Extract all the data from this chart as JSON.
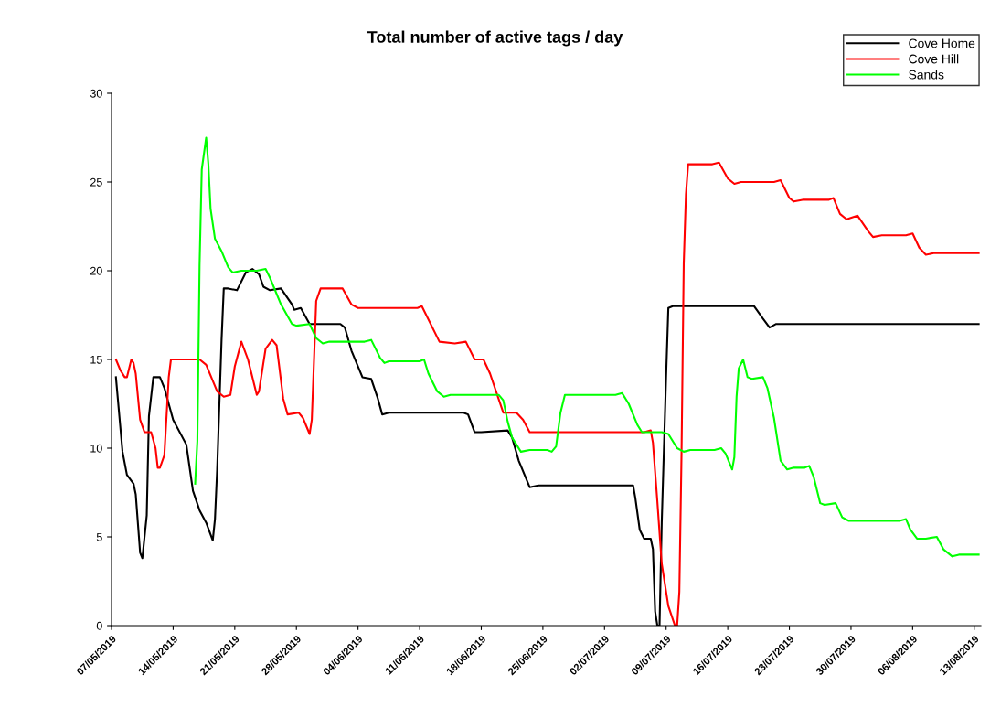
{
  "chart_data": {
    "type": "line",
    "title": "Total number of active tags / day",
    "ylim": [
      0,
      30
    ],
    "yticks": [
      0,
      5,
      10,
      15,
      20,
      25,
      30
    ],
    "xlim": [
      "2019-05-07",
      "2019-08-13T18:00"
    ],
    "xticks": [
      {
        "value": "2019-05-07",
        "label": "07/05/2019"
      },
      {
        "value": "2019-05-14",
        "label": "14/05/2019"
      },
      {
        "value": "2019-05-21",
        "label": "21/05/2019"
      },
      {
        "value": "2019-05-28",
        "label": "28/05/2019"
      },
      {
        "value": "2019-06-04",
        "label": "04/06/2019"
      },
      {
        "value": "2019-06-11",
        "label": "11/06/2019"
      },
      {
        "value": "2019-06-18",
        "label": "18/06/2019"
      },
      {
        "value": "2019-06-25",
        "label": "25/06/2019"
      },
      {
        "value": "2019-07-02",
        "label": "02/07/2019"
      },
      {
        "value": "2019-07-09",
        "label": "09/07/2019"
      },
      {
        "value": "2019-07-16",
        "label": "16/07/2019"
      },
      {
        "value": "2019-07-23",
        "label": "23/07/2019"
      },
      {
        "value": "2019-07-30",
        "label": "30/07/2019"
      },
      {
        "value": "2019-08-06",
        "label": "06/08/2019"
      },
      {
        "value": "2019-08-13",
        "label": "13/08/2019"
      }
    ],
    "grid": false,
    "legend": "top right",
    "marker": "none",
    "line_style": "solid",
    "series": [
      {
        "name": "Cove Home",
        "color": "#000000",
        "x": [
          "2019-05-07T12:00",
          "2019-05-07T18:00",
          "2019-05-08T06:00",
          "2019-05-08T18:00",
          "2019-05-09T12:00",
          "2019-05-09T18:00",
          "2019-05-10T06:00",
          "2019-05-10T12:00",
          "2019-05-11",
          "2019-05-11T06:00",
          "2019-05-11T18:00",
          "2019-05-12T12:00",
          "2019-05-13",
          "2019-05-14",
          "2019-05-15T12:00",
          "2019-05-16T06:00",
          "2019-05-17",
          "2019-05-17T18:00",
          "2019-05-18T12:00",
          "2019-05-18T18:00",
          "2019-05-19",
          "2019-05-19T12:00",
          "2019-05-19T18:00",
          "2019-05-20T06:00",
          "2019-05-21T06:00",
          "2019-05-22T06:00",
          "2019-05-23",
          "2019-05-23T18:00",
          "2019-05-24T06:00",
          "2019-05-25",
          "2019-05-26T06:00",
          "2019-05-27T12:00",
          "2019-05-27T18:00",
          "2019-05-28T12:00",
          "2019-05-29T12:00",
          "2019-06-02",
          "2019-06-02T12:00",
          "2019-06-03T06:00",
          "2019-06-04T12:00",
          "2019-06-05T12:00",
          "2019-06-06T06:00",
          "2019-06-06T18:00",
          "2019-06-07T12:00",
          "2019-06-16",
          "2019-06-16T12:00",
          "2019-06-17T06:00",
          "2019-06-18",
          "2019-06-21",
          "2019-06-21T12:00",
          "2019-06-22T06:00",
          "2019-06-23T12:00",
          "2019-06-24T12:00",
          "2019-07-05T06:00",
          "2019-07-05T12:00",
          "2019-07-06",
          "2019-07-06T12:00",
          "2019-07-07T06:00",
          "2019-07-07T12:00",
          "2019-07-07T18:00",
          "2019-07-08",
          "2019-07-08T06:00",
          "2019-07-08T12:00",
          "2019-07-09",
          "2019-07-09T06:00",
          "2019-07-09T18:00",
          "2019-07-18T06:00",
          "2019-07-19",
          "2019-07-20",
          "2019-07-20T18:00",
          "2019-07-21T12:00",
          "2019-08-13T12:00"
        ],
        "values": [
          14,
          12.6,
          9.8,
          8.5,
          8.0,
          7.4,
          4.1,
          3.8,
          6.2,
          11.8,
          14,
          14,
          13.4,
          11.6,
          10.2,
          7.6,
          6.5,
          5.8,
          4.8,
          6.0,
          8.8,
          16.1,
          19.0,
          19.0,
          18.9,
          19.9,
          20.1,
          19.8,
          19.1,
          18.9,
          19.0,
          18.1,
          17.8,
          17.9,
          17.0,
          17.0,
          16.8,
          15.5,
          14.0,
          13.9,
          12.8,
          11.9,
          12.0,
          12.0,
          11.9,
          10.9,
          10.9,
          11.0,
          10.6,
          9.3,
          7.8,
          7.9,
          7.9,
          7.2,
          5.4,
          4.9,
          4.9,
          4.3,
          0.8,
          0,
          0,
          5.8,
          14.1,
          17.9,
          18,
          18,
          18,
          17.3,
          16.8,
          17,
          17
        ]
      },
      {
        "name": "Cove Hill",
        "color": "#ff0000",
        "x": [
          "2019-05-07T12:00",
          "2019-05-08",
          "2019-05-08T12:00",
          "2019-05-08T18:00",
          "2019-05-09T06:00",
          "2019-05-09T12:00",
          "2019-05-09T18:00",
          "2019-05-10T06:00",
          "2019-05-10T18:00",
          "2019-05-11T12:00",
          "2019-05-12",
          "2019-05-12T06:00",
          "2019-05-12T12:00",
          "2019-05-13",
          "2019-05-13T12:00",
          "2019-05-13T18:00",
          "2019-05-14T06:00",
          "2019-05-17",
          "2019-05-17T18:00",
          "2019-05-19",
          "2019-05-19T18:00",
          "2019-05-20T12:00",
          "2019-05-21",
          "2019-05-21T18:00",
          "2019-05-22T12:00",
          "2019-05-23T12:00",
          "2019-05-23T18:00",
          "2019-05-24T12:00",
          "2019-05-25T06:00",
          "2019-05-25T18:00",
          "2019-05-26T12:00",
          "2019-05-27",
          "2019-05-28T06:00",
          "2019-05-28T18:00",
          "2019-05-29T12:00",
          "2019-05-29T18:00",
          "2019-05-30T06:00",
          "2019-05-30T18:00",
          "2019-06-02T06:00",
          "2019-06-03T06:00",
          "2019-06-04",
          "2019-06-10T18:00",
          "2019-06-11T06:00",
          "2019-06-13T06:00",
          "2019-06-15",
          "2019-06-16T06:00",
          "2019-06-17T06:00",
          "2019-06-18T06:00",
          "2019-06-19",
          "2019-06-20T12:00",
          "2019-06-22",
          "2019-06-22T18:00",
          "2019-06-23T12:00",
          "2019-06-24",
          "2019-07-06T12:00",
          "2019-07-07T06:00",
          "2019-07-07T12:00",
          "2019-07-08",
          "2019-07-08T12:00",
          "2019-07-09T06:00",
          "2019-07-10",
          "2019-07-10T06:00",
          "2019-07-10T12:00",
          "2019-07-10T18:00",
          "2019-07-11",
          "2019-07-11T06:00",
          "2019-07-11T12:00",
          "2019-07-14T06:00",
          "2019-07-15",
          "2019-07-16",
          "2019-07-16T18:00",
          "2019-07-17T12:00",
          "2019-07-21T06:00",
          "2019-07-22",
          "2019-07-23",
          "2019-07-23T12:00",
          "2019-07-24T12:00",
          "2019-07-27T12:00",
          "2019-07-28",
          "2019-07-28T18:00",
          "2019-07-29T12:00",
          "2019-07-30T18:00",
          "2019-08-01",
          "2019-08-01T12:00",
          "2019-08-02T12:00",
          "2019-08-05T06:00",
          "2019-08-06",
          "2019-08-06T18:00",
          "2019-08-07T12:00",
          "2019-08-08T12:00",
          "2019-08-13T12:00"
        ],
        "values": [
          15,
          14.4,
          14.0,
          14.0,
          15.0,
          14.8,
          14.2,
          11.6,
          10.9,
          10.9,
          10.0,
          8.9,
          8.9,
          9.6,
          14.0,
          15.0,
          15.0,
          15.0,
          14.7,
          13.2,
          12.9,
          13.0,
          14.6,
          16.0,
          15.0,
          13.0,
          13.2,
          15.6,
          16.1,
          15.8,
          12.8,
          11.9,
          12.0,
          11.7,
          10.8,
          11.6,
          18.3,
          19.0,
          19.0,
          18.1,
          17.9,
          17.9,
          18.0,
          16.0,
          15.9,
          16.0,
          15.0,
          15.0,
          14.2,
          12.0,
          12.0,
          11.6,
          10.9,
          10.9,
          10.9,
          11.0,
          10.3,
          7.0,
          3.5,
          1.1,
          0,
          0,
          1.9,
          9.7,
          20.4,
          24.3,
          26,
          26,
          26.1,
          25.2,
          24.9,
          25,
          25,
          25.1,
          24.1,
          23.9,
          24,
          24,
          24.1,
          23.2,
          22.9,
          23.1,
          22.2,
          21.9,
          22,
          22,
          22.1,
          21.3,
          20.9,
          21,
          21
        ]
      },
      {
        "name": "Sands",
        "color": "#00ff00",
        "x": [
          "2019-05-16T12:00",
          "2019-05-16T18:00",
          "2019-05-17",
          "2019-05-17T06:00",
          "2019-05-17T18:00",
          "2019-05-18",
          "2019-05-18T06:00",
          "2019-05-18T18:00",
          "2019-05-19T12:00",
          "2019-05-20T06:00",
          "2019-05-20T18:00",
          "2019-05-21T18:00",
          "2019-05-23T12:00",
          "2019-05-24T12:00",
          "2019-05-25",
          "2019-05-26T06:00",
          "2019-05-27T12:00",
          "2019-05-28",
          "2019-05-29T12:00",
          "2019-05-30T06:00",
          "2019-05-31",
          "2019-05-31T18:00",
          "2019-06-04T18:00",
          "2019-06-05T12:00",
          "2019-06-06T12:00",
          "2019-06-07",
          "2019-06-07T12:00",
          "2019-06-11",
          "2019-06-11T12:00",
          "2019-06-12",
          "2019-06-13",
          "2019-06-13T18:00",
          "2019-06-14T12:00",
          "2019-06-20",
          "2019-06-20T12:00",
          "2019-06-21",
          "2019-06-21T12:00",
          "2019-06-22T12:00",
          "2019-06-23T12:00",
          "2019-06-25T12:00",
          "2019-06-26",
          "2019-06-26T12:00",
          "2019-06-27",
          "2019-06-27T12:00",
          "2019-06-28T06:00",
          "2019-07-03T06:00",
          "2019-07-04",
          "2019-07-04T18:00",
          "2019-07-05T18:00",
          "2019-07-06T06:00",
          "2019-07-06T18:00",
          "2019-07-08T12:00",
          "2019-07-09T06:00",
          "2019-07-10T06:00",
          "2019-07-11",
          "2019-07-11T18:00",
          "2019-07-14T12:00",
          "2019-07-15T06:00",
          "2019-07-15T18:00",
          "2019-07-16T12:00",
          "2019-07-16T18:00",
          "2019-07-17",
          "2019-07-17T06:00",
          "2019-07-17T18:00",
          "2019-07-18T06:00",
          "2019-07-18T18:00",
          "2019-07-20",
          "2019-07-20T12:00",
          "2019-07-21T06:00",
          "2019-07-22",
          "2019-07-22T18:00",
          "2019-07-23T12:00",
          "2019-07-24T18:00",
          "2019-07-25T06:00",
          "2019-07-25T18:00",
          "2019-07-26T12:00",
          "2019-07-27",
          "2019-07-28T06:00",
          "2019-07-29",
          "2019-07-29T18:00",
          "2019-07-30T12:00",
          "2019-08-04T12:00",
          "2019-08-05T06:00",
          "2019-08-05T18:00",
          "2019-08-06T12:00",
          "2019-08-07T12:00",
          "2019-08-08T18:00",
          "2019-08-09T12:00",
          "2019-08-10T12:00",
          "2019-08-11T06:00",
          "2019-08-13T12:00"
        ],
        "values": [
          8.0,
          10.4,
          20.3,
          25.7,
          27.5,
          26.0,
          23.5,
          21.8,
          21.1,
          20.2,
          19.9,
          20.0,
          20.0,
          20.1,
          19.6,
          18.1,
          17.0,
          16.9,
          17.0,
          16.2,
          15.9,
          16.0,
          16.0,
          16.1,
          15.1,
          14.8,
          14.9,
          14.9,
          15.0,
          14.2,
          13.2,
          12.9,
          13.0,
          13.0,
          12.7,
          11.5,
          10.6,
          9.8,
          9.9,
          9.9,
          9.8,
          10.1,
          12.0,
          13.0,
          13.0,
          13.0,
          13.1,
          12.5,
          11.3,
          10.9,
          10.9,
          10.9,
          10.8,
          10.0,
          9.8,
          9.9,
          9.9,
          10.0,
          9.7,
          8.8,
          9.5,
          12.9,
          14.5,
          15.0,
          14.0,
          13.9,
          14.0,
          13.4,
          11.7,
          9.3,
          8.8,
          8.9,
          8.9,
          9.0,
          8.4,
          6.9,
          6.8,
          6.9,
          6.1,
          5.9,
          5.9,
          5.9,
          6.0,
          5.4,
          4.9,
          4.9,
          5.0,
          4.3,
          3.9,
          4.0,
          4.0
        ]
      }
    ]
  }
}
